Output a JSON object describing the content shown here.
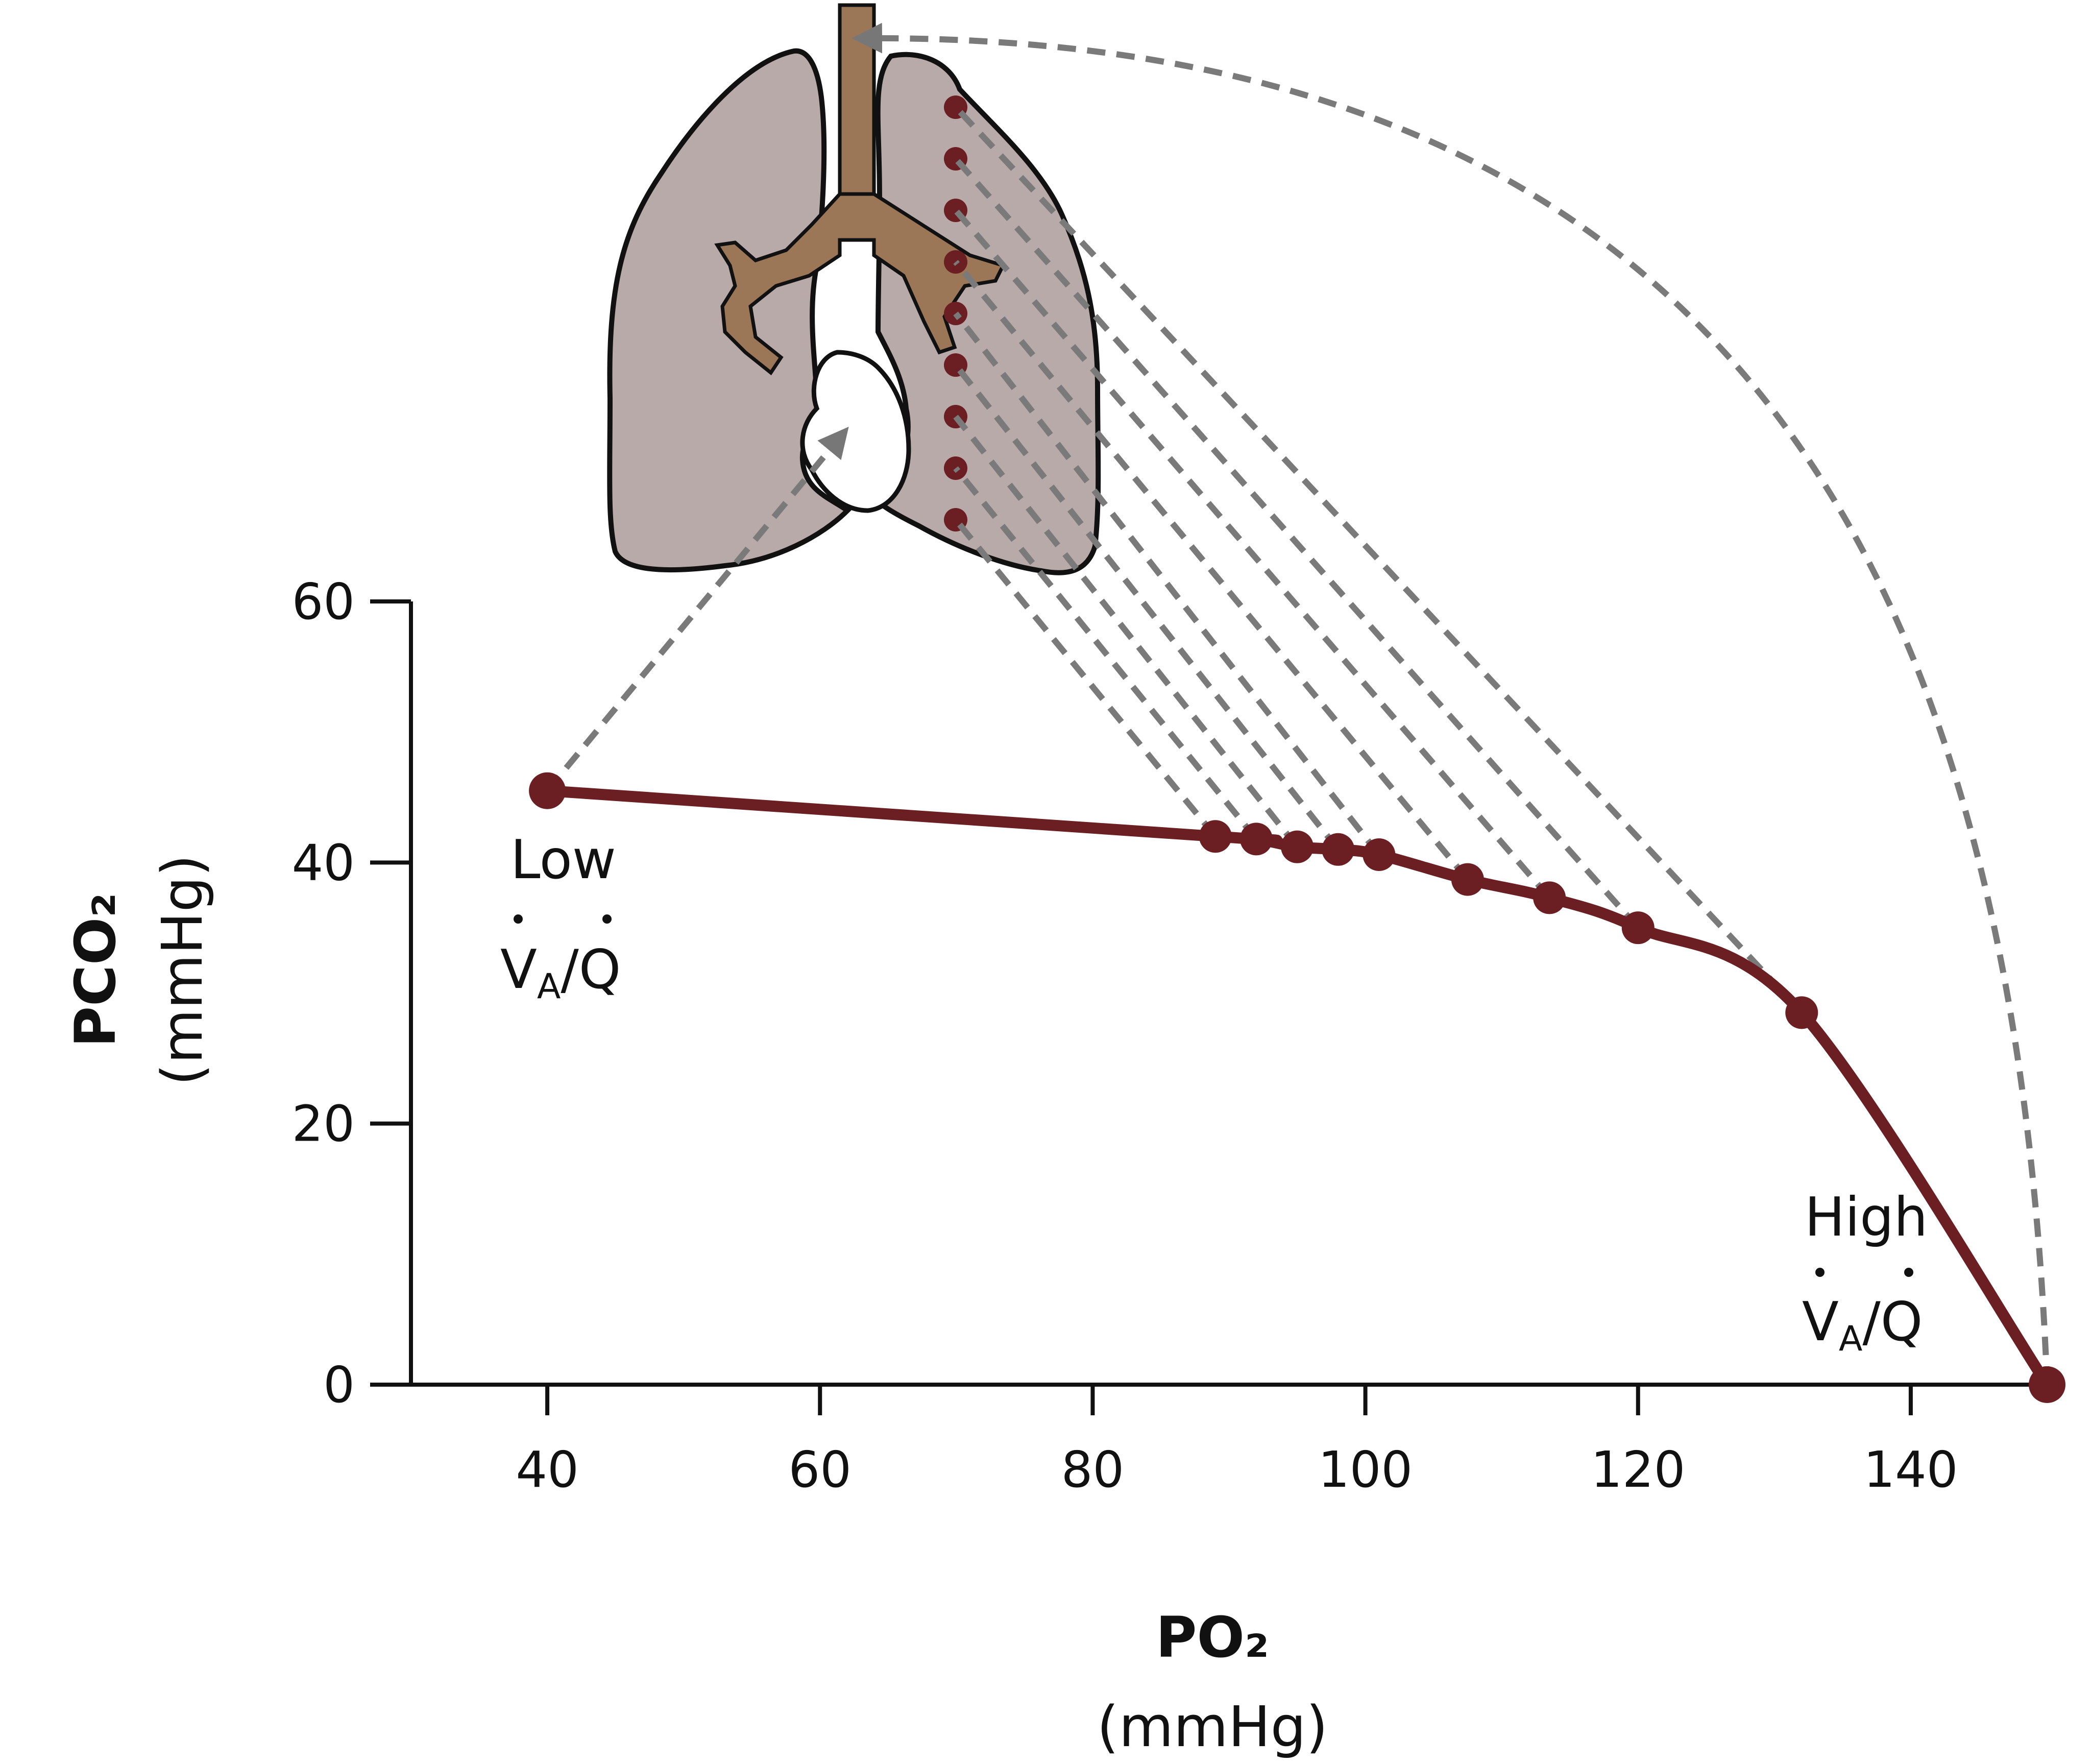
{
  "chart_data": {
    "type": "line",
    "xlabel": "PO₂",
    "xunit": "(mmHg)",
    "ylabel": "PCO₂",
    "yunit": "(mmHg)",
    "xlim": [
      30,
      150
    ],
    "ylim": [
      0,
      60
    ],
    "xticks": [
      40,
      60,
      80,
      100,
      120,
      140
    ],
    "yticks": [
      0,
      20,
      40,
      60
    ],
    "legend": "none",
    "grid": false,
    "curve_color": "#6b1f22",
    "series": [
      {
        "values": [
          {
            "x": 40,
            "y": 45.5
          },
          {
            "x": 89,
            "y": 42.0
          },
          {
            "x": 92,
            "y": 41.8
          },
          {
            "x": 95,
            "y": 41.2
          },
          {
            "x": 98,
            "y": 41.0
          },
          {
            "x": 101,
            "y": 40.6
          },
          {
            "x": 107.5,
            "y": 38.7
          },
          {
            "x": 113.5,
            "y": 37.3
          },
          {
            "x": 120,
            "y": 35.0
          },
          {
            "x": 132,
            "y": 28.5
          },
          {
            "x": 150,
            "y": 0
          }
        ]
      }
    ],
    "annotations": [
      {
        "id": "low",
        "line1": "Low",
        "v": "V",
        "sub": "A",
        "slash": "/",
        "q": "Q",
        "x": 40,
        "y": 45.5
      },
      {
        "id": "high",
        "line1": "High",
        "v": "V",
        "sub": "A",
        "slash": "/",
        "q": "Q",
        "x": 150,
        "y": 0
      }
    ]
  },
  "illustration": {
    "name": "lungs-heart-icon",
    "lung_color": "#b9aaaa",
    "airway_color": "#9c7757",
    "dot_color": "#6b1f22",
    "arrow_color": "#7a7a7a"
  }
}
